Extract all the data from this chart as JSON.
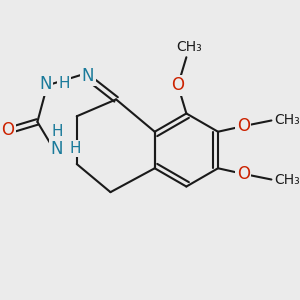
{
  "bg_color": "#ebebeb",
  "bond_color": "#1a1a1a",
  "N_color": "#1a7a9a",
  "O_color": "#cc2200",
  "lw": 1.5,
  "fs": 11,
  "xlim": [
    0,
    10
  ],
  "ylim": [
    0,
    10
  ]
}
